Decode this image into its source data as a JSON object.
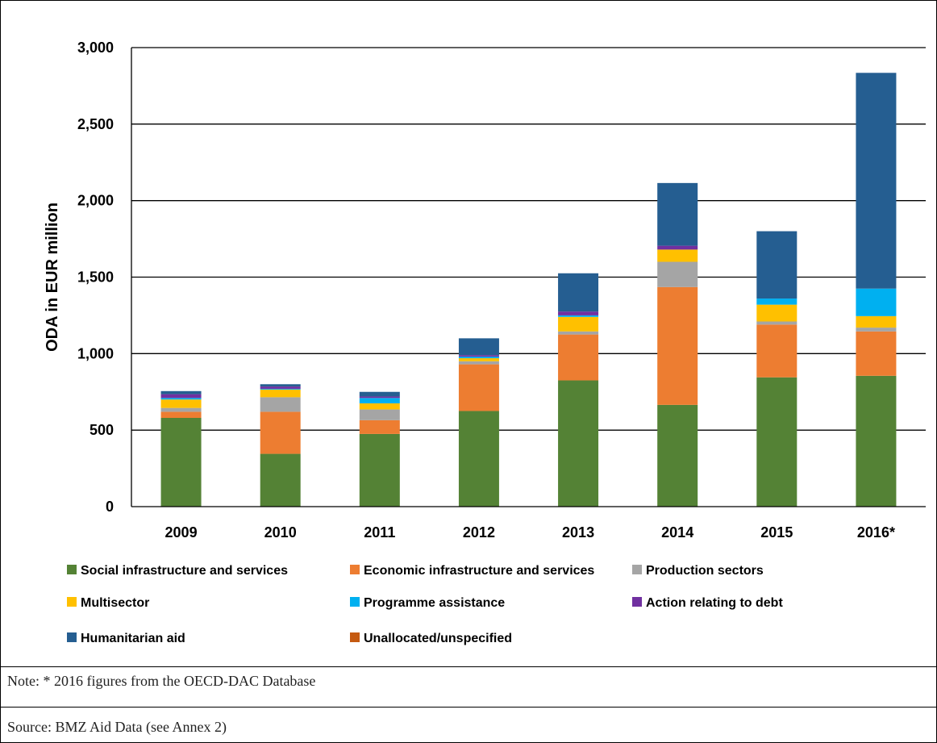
{
  "chart_data": {
    "type": "bar",
    "stacked": true,
    "ylabel": "ODA in EUR million",
    "ylim": [
      0,
      3000
    ],
    "yticks": [
      "0",
      "500",
      "1,000",
      "1,500",
      "2,000",
      "2,500",
      "3,000"
    ],
    "ytick_values": [
      0,
      500,
      1000,
      1500,
      2000,
      2500,
      3000
    ],
    "grid": true,
    "legend_position": "bottom",
    "categories": [
      "2009",
      "2010",
      "2011",
      "2012",
      "2013",
      "2014",
      "2015",
      "2016*"
    ],
    "series": [
      {
        "name": "Social infrastructure and services",
        "color": "#548235",
        "values": [
          580,
          345,
          475,
          625,
          825,
          665,
          845,
          855
        ]
      },
      {
        "name": "Economic infrastructure and services",
        "color": "#ED7D31",
        "values": [
          40,
          275,
          90,
          305,
          300,
          770,
          345,
          290
        ]
      },
      {
        "name": "Production sectors",
        "color": "#A5A5A5",
        "values": [
          25,
          95,
          70,
          20,
          20,
          165,
          20,
          25
        ]
      },
      {
        "name": "Multisector",
        "color": "#FFC000",
        "values": [
          55,
          50,
          40,
          20,
          95,
          80,
          110,
          75
        ]
      },
      {
        "name": "Programme assistance",
        "color": "#00B0F0",
        "values": [
          10,
          5,
          35,
          10,
          10,
          0,
          40,
          180
        ]
      },
      {
        "name": "Action relating to debt",
        "color": "#7030A0",
        "values": [
          25,
          15,
          10,
          10,
          25,
          25,
          0,
          0
        ]
      },
      {
        "name": "Humanitarian aid",
        "color": "#255E91",
        "values": [
          20,
          15,
          30,
          110,
          250,
          410,
          440,
          1410
        ]
      },
      {
        "name": "Unallocated/unspecified",
        "color": "#C55A11",
        "values": [
          0,
          0,
          0,
          0,
          0,
          0,
          0,
          0
        ]
      }
    ]
  },
  "notes": {
    "note": "Note: * 2016 figures from the OECD-DAC Database",
    "source": "Source: BMZ Aid Data (see Annex 2)"
  }
}
